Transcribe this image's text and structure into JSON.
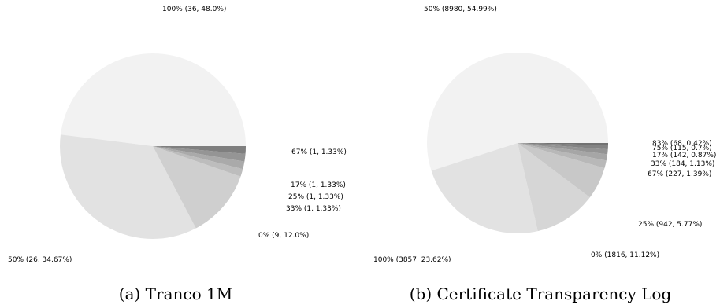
{
  "chart_data": [
    {
      "type": "pie",
      "caption": "(a) Tranco 1M",
      "slices": [
        {
          "label": "100% (36, 48.0%)",
          "value": 48.0,
          "color": "#f2f2f2"
        },
        {
          "label": "50% (26, 34.67%)",
          "value": 34.67,
          "color": "#e2e2e2"
        },
        {
          "label": "0% (9, 12.0%)",
          "value": 12.0,
          "color": "#cfcfcf"
        },
        {
          "label": "33% (1, 1.33%)",
          "value": 1.33,
          "color": "#bdbdbd"
        },
        {
          "label": "25% (1, 1.33%)",
          "value": 1.33,
          "color": "#aaaaaa"
        },
        {
          "label": "17% (1, 1.33%)",
          "value": 1.33,
          "color": "#959595"
        },
        {
          "label": "67% (1, 1.33%)",
          "value": 1.33,
          "color": "#7f7f7f"
        }
      ]
    },
    {
      "type": "pie",
      "caption": "(b) Certificate Transparency Log",
      "slices": [
        {
          "label": "50% (8980, 54.99%)",
          "value": 54.99,
          "color": "#f2f2f2"
        },
        {
          "label": "100% (3857, 23.62%)",
          "value": 23.62,
          "color": "#e2e2e2"
        },
        {
          "label": "0% (1816, 11.12%)",
          "value": 11.12,
          "color": "#d6d6d6"
        },
        {
          "label": "25% (942, 5.77%)",
          "value": 5.77,
          "color": "#c8c8c8"
        },
        {
          "label": "67% (227, 1.39%)",
          "value": 1.39,
          "color": "#b8b8b8"
        },
        {
          "label": "33% (184, 1.13%)",
          "value": 1.13,
          "color": "#a6a6a6"
        },
        {
          "label": "17% (142, 0.87%)",
          "value": 0.87,
          "color": "#949494"
        },
        {
          "label": "75% (115, 0.7%)",
          "value": 0.7,
          "color": "#838383"
        },
        {
          "label": "83% (68, 0.42%)",
          "value": 0.42,
          "color": "#727272"
        }
      ]
    }
  ]
}
